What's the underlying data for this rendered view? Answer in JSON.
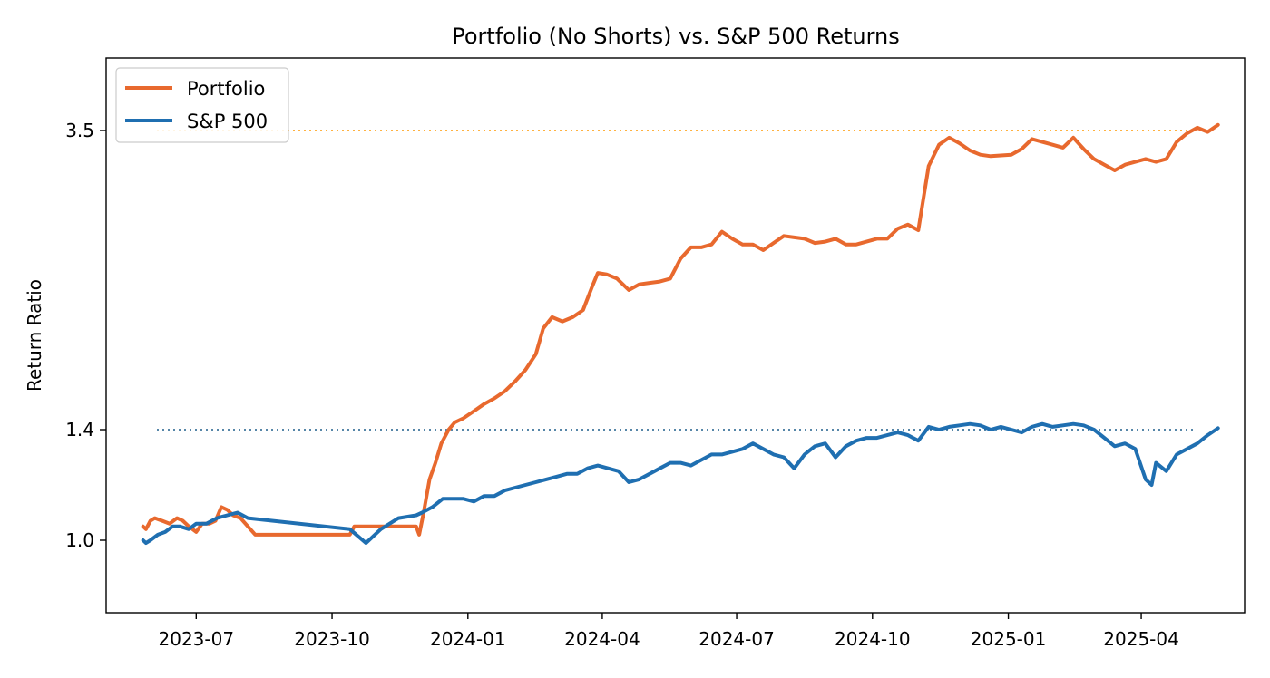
{
  "chart_data": {
    "type": "line",
    "title": "Portfolio (No Shorts) vs. S&P 500 Returns",
    "xlabel": "",
    "ylabel": "Return Ratio",
    "xlim": [
      "2023-05-01",
      "2025-06-10"
    ],
    "ylim": [
      0.74,
      3.76
    ],
    "yscale": "piecewise-display",
    "y_ticks": [
      1.0,
      1.4,
      3.5
    ],
    "y_tick_labels": [
      "1.0",
      "1.4",
      "3.5"
    ],
    "x_ticks": [
      "2023-07-01",
      "2023-10-01",
      "2024-01-01",
      "2024-04-01",
      "2024-07-01",
      "2024-10-01",
      "2025-01-01",
      "2025-04-01"
    ],
    "x_tick_labels": [
      "2023-07",
      "2023-10",
      "2024-01",
      "2024-04",
      "2024-07",
      "2024-10",
      "2025-01",
      "2025-04"
    ],
    "grid": false,
    "legend_position": "top-left",
    "reference_lines": [
      {
        "y": 3.5,
        "color": "#ff9900",
        "style": "dotted"
      },
      {
        "y": 1.4,
        "color": "#1f5f8b",
        "style": "dotted"
      }
    ],
    "series": [
      {
        "name": "Portfolio",
        "color": "#e8692e",
        "points": [
          [
            "2023-05-26",
            1.05
          ],
          [
            "2023-05-28",
            1.04
          ],
          [
            "2023-05-31",
            1.07
          ],
          [
            "2023-06-03",
            1.08
          ],
          [
            "2023-06-08",
            1.07
          ],
          [
            "2023-06-13",
            1.06
          ],
          [
            "2023-06-18",
            1.08
          ],
          [
            "2023-06-22",
            1.07
          ],
          [
            "2023-06-26",
            1.05
          ],
          [
            "2023-07-01",
            1.03
          ],
          [
            "2023-07-05",
            1.06
          ],
          [
            "2023-07-10",
            1.06
          ],
          [
            "2023-07-14",
            1.07
          ],
          [
            "2023-07-18",
            1.12
          ],
          [
            "2023-07-22",
            1.11
          ],
          [
            "2023-07-26",
            1.09
          ],
          [
            "2023-07-31",
            1.08
          ],
          [
            "2023-08-05",
            1.05
          ],
          [
            "2023-08-10",
            1.02
          ],
          [
            "2023-10-13",
            1.02
          ],
          [
            "2023-10-16",
            1.05
          ],
          [
            "2023-11-06",
            1.05
          ],
          [
            "2023-11-27",
            1.05
          ],
          [
            "2023-11-29",
            1.02
          ],
          [
            "2023-12-02",
            1.1
          ],
          [
            "2023-12-06",
            1.22
          ],
          [
            "2023-12-10",
            1.28
          ],
          [
            "2023-12-14",
            1.35
          ],
          [
            "2023-12-19",
            1.4
          ],
          [
            "2023-12-23",
            1.45
          ],
          [
            "2023-12-29",
            1.48
          ],
          [
            "2024-01-05",
            1.53
          ],
          [
            "2024-01-12",
            1.58
          ],
          [
            "2024-01-19",
            1.62
          ],
          [
            "2024-01-26",
            1.67
          ],
          [
            "2024-02-02",
            1.74
          ],
          [
            "2024-02-09",
            1.82
          ],
          [
            "2024-02-16",
            1.93
          ],
          [
            "2024-02-21",
            2.11
          ],
          [
            "2024-02-27",
            2.19
          ],
          [
            "2024-03-05",
            2.16
          ],
          [
            "2024-03-12",
            2.19
          ],
          [
            "2024-03-19",
            2.24
          ],
          [
            "2024-03-25",
            2.4
          ],
          [
            "2024-03-29",
            2.5
          ],
          [
            "2024-04-04",
            2.49
          ],
          [
            "2024-04-11",
            2.46
          ],
          [
            "2024-04-19",
            2.38
          ],
          [
            "2024-04-26",
            2.42
          ],
          [
            "2024-05-03",
            2.43
          ],
          [
            "2024-05-10",
            2.44
          ],
          [
            "2024-05-17",
            2.46
          ],
          [
            "2024-05-24",
            2.6
          ],
          [
            "2024-05-31",
            2.68
          ],
          [
            "2024-06-07",
            2.68
          ],
          [
            "2024-06-14",
            2.7
          ],
          [
            "2024-06-21",
            2.79
          ],
          [
            "2024-06-28",
            2.74
          ],
          [
            "2024-07-05",
            2.7
          ],
          [
            "2024-07-12",
            2.7
          ],
          [
            "2024-07-19",
            2.66
          ],
          [
            "2024-07-26",
            2.71
          ],
          [
            "2024-08-02",
            2.76
          ],
          [
            "2024-08-09",
            2.75
          ],
          [
            "2024-08-16",
            2.74
          ],
          [
            "2024-08-23",
            2.71
          ],
          [
            "2024-08-30",
            2.72
          ],
          [
            "2024-09-06",
            2.74
          ],
          [
            "2024-09-13",
            2.7
          ],
          [
            "2024-09-20",
            2.7
          ],
          [
            "2024-09-27",
            2.72
          ],
          [
            "2024-10-04",
            2.74
          ],
          [
            "2024-10-11",
            2.74
          ],
          [
            "2024-10-18",
            2.81
          ],
          [
            "2024-10-25",
            2.84
          ],
          [
            "2024-11-01",
            2.8
          ],
          [
            "2024-11-08",
            3.25
          ],
          [
            "2024-11-15",
            3.4
          ],
          [
            "2024-11-22",
            3.45
          ],
          [
            "2024-11-29",
            3.41
          ],
          [
            "2024-12-06",
            3.36
          ],
          [
            "2024-12-13",
            3.33
          ],
          [
            "2024-12-20",
            3.32
          ],
          [
            "2025-01-03",
            3.33
          ],
          [
            "2025-01-10",
            3.37
          ],
          [
            "2025-01-17",
            3.44
          ],
          [
            "2025-01-24",
            3.42
          ],
          [
            "2025-01-31",
            3.4
          ],
          [
            "2025-02-07",
            3.38
          ],
          [
            "2025-02-14",
            3.45
          ],
          [
            "2025-02-21",
            3.37
          ],
          [
            "2025-02-28",
            3.3
          ],
          [
            "2025-03-07",
            3.26
          ],
          [
            "2025-03-14",
            3.22
          ],
          [
            "2025-03-21",
            3.26
          ],
          [
            "2025-03-28",
            3.28
          ],
          [
            "2025-04-04",
            3.3
          ],
          [
            "2025-04-11",
            3.28
          ],
          [
            "2025-04-18",
            3.3
          ],
          [
            "2025-04-25",
            3.42
          ],
          [
            "2025-05-02",
            3.48
          ],
          [
            "2025-05-09",
            3.51
          ],
          [
            "2025-05-16",
            3.49
          ],
          [
            "2025-05-23",
            3.52
          ]
        ]
      },
      {
        "name": "S&P 500",
        "color": "#1f6fb1",
        "points": [
          [
            "2023-05-26",
            1.0
          ],
          [
            "2023-05-28",
            0.99
          ],
          [
            "2023-05-31",
            1.0
          ],
          [
            "2023-06-05",
            1.02
          ],
          [
            "2023-06-10",
            1.03
          ],
          [
            "2023-06-15",
            1.05
          ],
          [
            "2023-06-20",
            1.05
          ],
          [
            "2023-06-26",
            1.04
          ],
          [
            "2023-07-01",
            1.06
          ],
          [
            "2023-07-08",
            1.06
          ],
          [
            "2023-07-15",
            1.08
          ],
          [
            "2023-07-22",
            1.09
          ],
          [
            "2023-07-29",
            1.1
          ],
          [
            "2023-08-05",
            1.08
          ],
          [
            "2023-10-13",
            1.04
          ],
          [
            "2023-10-24",
            0.99
          ],
          [
            "2023-11-03",
            1.04
          ],
          [
            "2023-11-15",
            1.08
          ],
          [
            "2023-11-27",
            1.09
          ],
          [
            "2023-12-01",
            1.1
          ],
          [
            "2023-12-08",
            1.12
          ],
          [
            "2023-12-15",
            1.15
          ],
          [
            "2023-12-22",
            1.15
          ],
          [
            "2023-12-29",
            1.15
          ],
          [
            "2024-01-05",
            1.14
          ],
          [
            "2024-01-12",
            1.16
          ],
          [
            "2024-01-19",
            1.16
          ],
          [
            "2024-01-26",
            1.18
          ],
          [
            "2024-02-02",
            1.19
          ],
          [
            "2024-02-09",
            1.2
          ],
          [
            "2024-02-16",
            1.21
          ],
          [
            "2024-02-23",
            1.22
          ],
          [
            "2024-03-01",
            1.23
          ],
          [
            "2024-03-08",
            1.24
          ],
          [
            "2024-03-15",
            1.24
          ],
          [
            "2024-03-22",
            1.26
          ],
          [
            "2024-03-29",
            1.27
          ],
          [
            "2024-04-05",
            1.26
          ],
          [
            "2024-04-12",
            1.25
          ],
          [
            "2024-04-19",
            1.21
          ],
          [
            "2024-04-26",
            1.22
          ],
          [
            "2024-05-03",
            1.24
          ],
          [
            "2024-05-10",
            1.26
          ],
          [
            "2024-05-17",
            1.28
          ],
          [
            "2024-05-24",
            1.28
          ],
          [
            "2024-05-31",
            1.27
          ],
          [
            "2024-06-07",
            1.29
          ],
          [
            "2024-06-14",
            1.31
          ],
          [
            "2024-06-21",
            1.31
          ],
          [
            "2024-06-28",
            1.32
          ],
          [
            "2024-07-05",
            1.33
          ],
          [
            "2024-07-12",
            1.35
          ],
          [
            "2024-07-19",
            1.33
          ],
          [
            "2024-07-26",
            1.31
          ],
          [
            "2024-08-02",
            1.3
          ],
          [
            "2024-08-09",
            1.26
          ],
          [
            "2024-08-16",
            1.31
          ],
          [
            "2024-08-23",
            1.34
          ],
          [
            "2024-08-30",
            1.35
          ],
          [
            "2024-09-06",
            1.3
          ],
          [
            "2024-09-13",
            1.34
          ],
          [
            "2024-09-20",
            1.36
          ],
          [
            "2024-09-27",
            1.37
          ],
          [
            "2024-10-04",
            1.37
          ],
          [
            "2024-10-11",
            1.38
          ],
          [
            "2024-10-18",
            1.39
          ],
          [
            "2024-10-25",
            1.38
          ],
          [
            "2024-11-01",
            1.36
          ],
          [
            "2024-11-08",
            1.42
          ],
          [
            "2024-11-15",
            1.4
          ],
          [
            "2024-11-22",
            1.42
          ],
          [
            "2024-11-29",
            1.43
          ],
          [
            "2024-12-06",
            1.44
          ],
          [
            "2024-12-13",
            1.43
          ],
          [
            "2024-12-20",
            1.4
          ],
          [
            "2024-12-27",
            1.42
          ],
          [
            "2025-01-03",
            1.4
          ],
          [
            "2025-01-10",
            1.39
          ],
          [
            "2025-01-17",
            1.42
          ],
          [
            "2025-01-24",
            1.44
          ],
          [
            "2025-01-31",
            1.42
          ],
          [
            "2025-02-07",
            1.43
          ],
          [
            "2025-02-14",
            1.44
          ],
          [
            "2025-02-21",
            1.43
          ],
          [
            "2025-02-28",
            1.4
          ],
          [
            "2025-03-07",
            1.37
          ],
          [
            "2025-03-14",
            1.34
          ],
          [
            "2025-03-21",
            1.35
          ],
          [
            "2025-03-28",
            1.33
          ],
          [
            "2025-04-04",
            1.22
          ],
          [
            "2025-04-08",
            1.2
          ],
          [
            "2025-04-11",
            1.28
          ],
          [
            "2025-04-18",
            1.25
          ],
          [
            "2025-04-25",
            1.31
          ],
          [
            "2025-05-02",
            1.33
          ],
          [
            "2025-05-09",
            1.35
          ],
          [
            "2025-05-16",
            1.38
          ],
          [
            "2025-05-23",
            1.41
          ]
        ]
      }
    ]
  }
}
